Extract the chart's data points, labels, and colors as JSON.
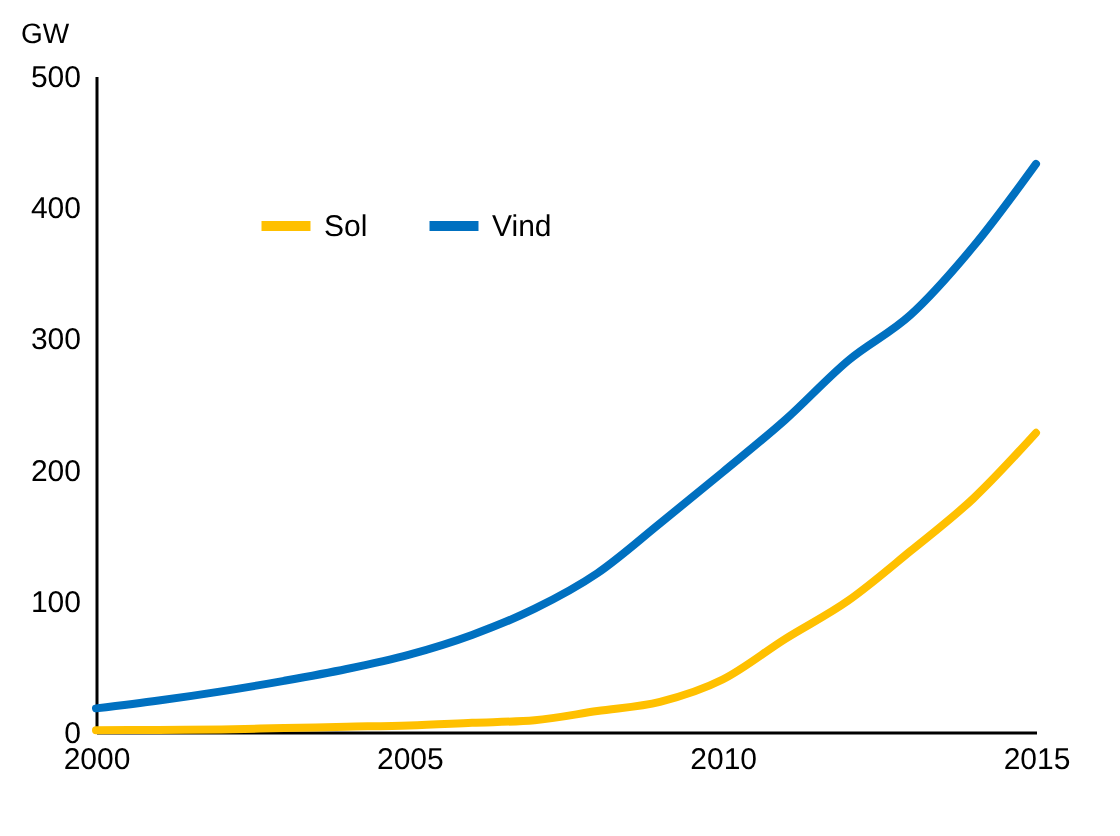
{
  "chart_data": {
    "type": "line",
    "ylabel": "GW",
    "x": [
      2000,
      2001,
      2002,
      2003,
      2004,
      2005,
      2006,
      2007,
      2008,
      2009,
      2010,
      2011,
      2012,
      2013,
      2014,
      2015
    ],
    "series": [
      {
        "name": "Sol",
        "color": "#ffc000",
        "values": [
          1.3,
          1.6,
          2,
          3,
          4,
          5,
          7,
          9,
          16,
          23,
          40,
          71,
          100,
          138,
          178,
          228
        ]
      },
      {
        "name": "Vind",
        "color": "#0070c0",
        "values": [
          18,
          24,
          31,
          39,
          48,
          59,
          74,
          94,
          121,
          159,
          198,
          238,
          283,
          318,
          370,
          433
        ]
      }
    ],
    "xlim": [
      2000,
      2015
    ],
    "xticks": [
      2000,
      2005,
      2010,
      2015
    ],
    "ylim": [
      0,
      500
    ],
    "yticks": [
      0,
      100,
      200,
      300,
      400,
      500
    ],
    "grid": false,
    "legend": "top left",
    "marker": "none",
    "line_style": "solid"
  }
}
